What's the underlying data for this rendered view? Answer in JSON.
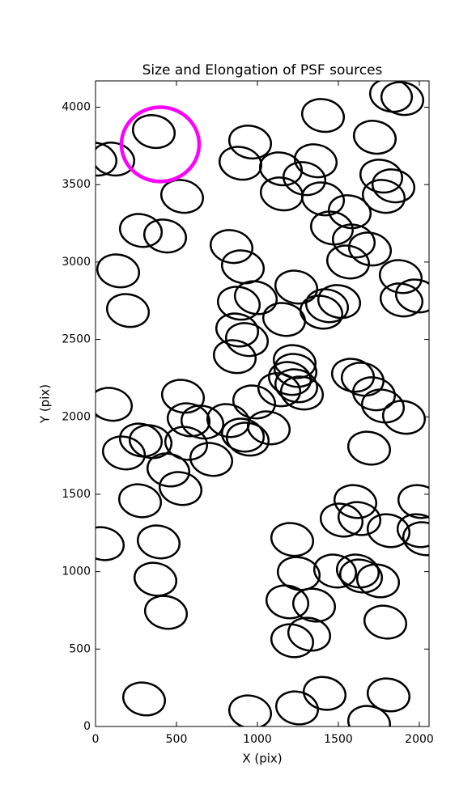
{
  "chart_data": {
    "type": "scatter",
    "title": "Size and Elongation of PSF sources",
    "x_label": "X (pix)",
    "y_label": "Y (pix)",
    "color": "#000000",
    "x": [
      360,
      0,
      110,
      535,
      280,
      430,
      140,
      200,
      1405,
      955,
      895,
      1145,
      1360,
      1290,
      1150,
      1405,
      1725,
      1825,
      1895,
      1765,
      1840,
      1780,
      1570,
      1460,
      1595,
      1695,
      1560,
      840,
      910,
      1240,
      1885,
      1985,
      1890,
      1505,
      1430,
      1395,
      990,
      885,
      1165,
      875,
      935,
      860,
      1230,
      1235,
      1200,
      1135,
      1240,
      1275,
      1590,
      1650,
      1720,
      1775,
      1905,
      1690,
      95,
      540,
      575,
      660,
      820,
      980,
      1070,
      910,
      940,
      280,
      340,
      560,
      175,
      715,
      450,
      525,
      275,
      2000,
      1605,
      1520,
      1630,
      1810,
      1995,
      2030,
      45,
      390,
      1215,
      1255,
      1480,
      1620,
      1640,
      1745,
      370,
      435,
      1185,
      1350,
      1790,
      1215,
      1320,
      300,
      955,
      1245,
      1415,
      1810,
      1690
    ],
    "y": [
      3843,
      3665,
      3665,
      3424,
      3204,
      3168,
      2943,
      2687,
      3947,
      3775,
      3638,
      3602,
      3654,
      3539,
      3440,
      3408,
      3806,
      4077,
      4056,
      3555,
      3492,
      3424,
      3325,
      3220,
      3136,
      3084,
      3000,
      3100,
      2969,
      2838,
      2906,
      2781,
      2755,
      2745,
      2718,
      2676,
      2770,
      2734,
      2629,
      2561,
      2499,
      2389,
      2357,
      2300,
      2248,
      2175,
      2201,
      2154,
      2269,
      2243,
      2149,
      2070,
      1997,
      1798,
      2081,
      2133,
      1981,
      1966,
      1976,
      2096,
      1929,
      1882,
      1856,
      1850,
      1840,
      1829,
      1767,
      1725,
      1657,
      1537,
      1458,
      1453,
      1453,
      1333,
      1343,
      1265,
      1265,
      1213,
      1181,
      1192,
      1208,
      988,
      1004,
      1004,
      972,
      941,
      951,
      737,
      805,
      784,
      674,
      554,
      596,
      178,
      94,
      120,
      214,
      204,
      26
    ],
    "highlight": {
      "x": 400,
      "y": 3760,
      "r": 240,
      "color": "#ff00ff"
    },
    "xlim": [
      0,
      2060
    ],
    "ylim": [
      0,
      4170
    ],
    "xticks": [
      0,
      500,
      1000,
      1500,
      2000
    ],
    "yticks": [
      0,
      500,
      1000,
      1500,
      2000,
      2500,
      3000,
      3500,
      4000
    ]
  }
}
